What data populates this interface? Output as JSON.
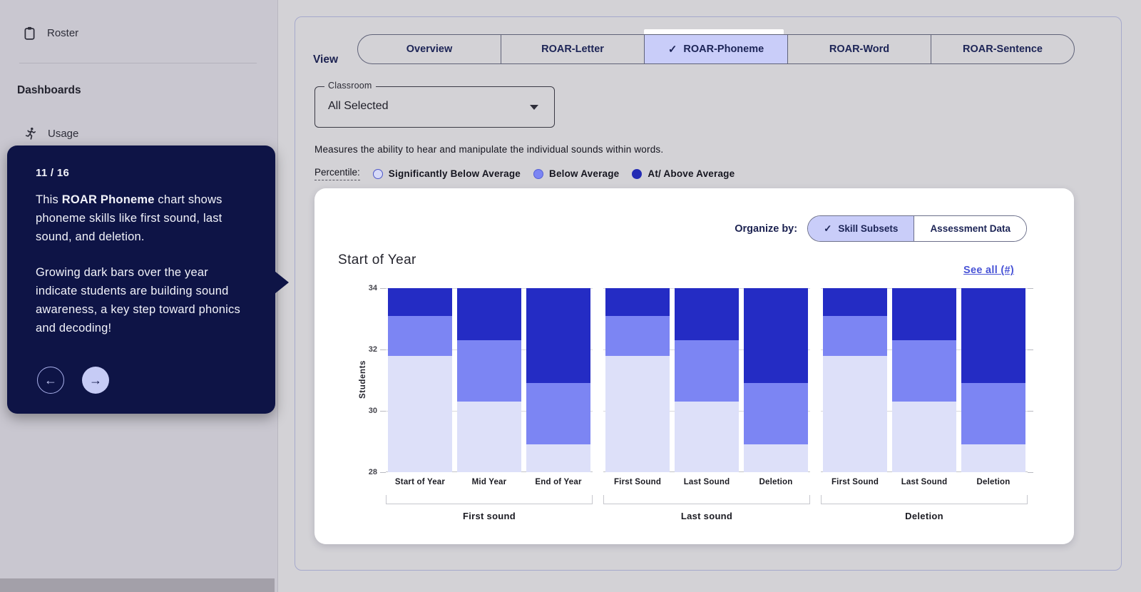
{
  "sidebar": {
    "roster_label": "Roster",
    "section_heading": "Dashboards",
    "usage_label": "Usage"
  },
  "tour": {
    "step_counter": "11 / 16",
    "paragraph1_pre": "This ",
    "paragraph1_bold": "ROAR Phoneme",
    "paragraph1_post": " chart shows phoneme skills like first sound, last sound, and deletion.",
    "paragraph2": "Growing dark bars over the year indicate students are building sound awareness, a key step toward phonics and decoding!",
    "prev_glyph": "←",
    "next_glyph": "→"
  },
  "view_bar": {
    "label": "View",
    "check_glyph": "✓",
    "tabs": [
      {
        "label": "Overview",
        "selected": false
      },
      {
        "label": "ROAR-Letter",
        "selected": false
      },
      {
        "label": "ROAR-Phoneme",
        "selected": true
      },
      {
        "label": "ROAR-Word",
        "selected": false
      },
      {
        "label": "ROAR-Sentence",
        "selected": false
      }
    ]
  },
  "classroom": {
    "label": "Classroom",
    "value": "All Selected"
  },
  "description": "Measures the ability to hear and manipulate the individual sounds within words.",
  "legend": {
    "label": "Percentile:",
    "items": [
      {
        "label": "Significantly Below Average",
        "fill": "#d7daf7",
        "border": "#4d57c8"
      },
      {
        "label": "Below Average",
        "fill": "#7c85f3",
        "border": "#5560d6"
      },
      {
        "label": "At/ Above Average",
        "fill": "#242cb4",
        "border": "#242cb4"
      }
    ]
  },
  "card": {
    "organize_label": "Organize by:",
    "check_glyph": "✓",
    "toggle": [
      {
        "label": "Skill Subsets",
        "selected": true
      },
      {
        "label": "Assessment Data",
        "selected": false
      }
    ],
    "see_all": "See all (#)"
  },
  "chart_data": {
    "type": "stacked-bar",
    "title": "Start of Year",
    "ylabel": "Students",
    "ylim": [
      28,
      34
    ],
    "yticks": [
      28,
      30,
      32,
      34
    ],
    "grid": true,
    "legend_position": "above-chart",
    "series": [
      "Significantly Below Average",
      "Below Average",
      "At/ Above Average"
    ],
    "colors": [
      "#dde0f9",
      "#7c85f3",
      "#242cc4"
    ],
    "groups": [
      {
        "label": "First sound",
        "bars": [
          {
            "label": "Start of Year",
            "segments": [
              [
                28,
                31.8
              ],
              [
                31.8,
                33.1
              ],
              [
                33.1,
                34
              ]
            ]
          },
          {
            "label": "Mid Year",
            "segments": [
              [
                28,
                30.3
              ],
              [
                30.3,
                32.3
              ],
              [
                32.3,
                34
              ]
            ]
          },
          {
            "label": "End of Year",
            "segments": [
              [
                28,
                28.9
              ],
              [
                28.9,
                30.9
              ],
              [
                30.9,
                34
              ]
            ]
          }
        ]
      },
      {
        "label": "Last sound",
        "bars": [
          {
            "label": "First Sound",
            "segments": [
              [
                28,
                31.8
              ],
              [
                31.8,
                33.1
              ],
              [
                33.1,
                34
              ]
            ]
          },
          {
            "label": "Last Sound",
            "segments": [
              [
                28,
                30.3
              ],
              [
                30.3,
                32.3
              ],
              [
                32.3,
                34
              ]
            ]
          },
          {
            "label": "Deletion",
            "segments": [
              [
                28,
                28.9
              ],
              [
                28.9,
                30.9
              ],
              [
                30.9,
                34
              ]
            ]
          }
        ]
      },
      {
        "label": "Deletion",
        "bars": [
          {
            "label": "First Sound",
            "segments": [
              [
                28,
                31.8
              ],
              [
                31.8,
                33.1
              ],
              [
                33.1,
                34
              ]
            ]
          },
          {
            "label": "Last Sound",
            "segments": [
              [
                28,
                30.3
              ],
              [
                30.3,
                32.3
              ],
              [
                32.3,
                34
              ]
            ]
          },
          {
            "label": "Deletion",
            "segments": [
              [
                28,
                28.9
              ],
              [
                28.9,
                30.9
              ],
              [
                30.9,
                34
              ]
            ]
          }
        ]
      }
    ]
  }
}
